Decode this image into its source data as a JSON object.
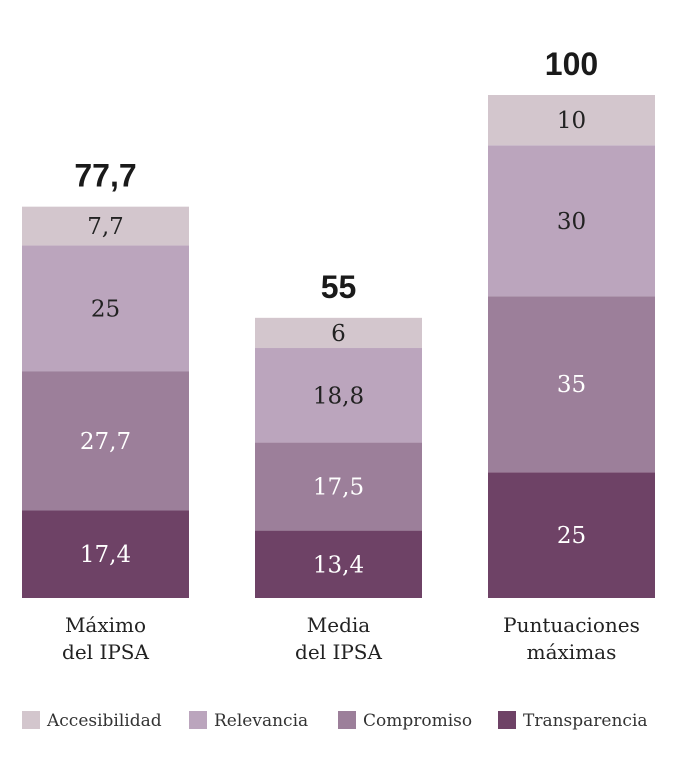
{
  "chart_data": {
    "type": "bar",
    "stacked": true,
    "categories": [
      [
        "Máximo",
        "del IPSA"
      ],
      [
        "Media",
        "del IPSA"
      ],
      [
        "Puntuaciones",
        "máximas"
      ]
    ],
    "totals": [
      "77,7",
      "55",
      "100"
    ],
    "series": [
      {
        "name": "Transparencia",
        "color": "#6e4266",
        "text_color": "#ffffff",
        "values": [
          17.4,
          13.4,
          25
        ],
        "labels": [
          "17,4",
          "13,4",
          "25"
        ]
      },
      {
        "name": "Compromiso",
        "color": "#9c7f9a",
        "text_color": "#ffffff",
        "values": [
          27.7,
          17.5,
          35
        ],
        "labels": [
          "27,7",
          "17,5",
          "35"
        ]
      },
      {
        "name": "Relevancia",
        "color": "#bba5bd",
        "text_color": "#222222",
        "values": [
          25,
          18.8,
          30
        ],
        "labels": [
          "25",
          "18,8",
          "30"
        ]
      },
      {
        "name": "Accesibilidad",
        "color": "#d3c6cd",
        "text_color": "#222222",
        "values": [
          7.7,
          6,
          10
        ],
        "labels": [
          "7,7",
          "6",
          "10"
        ]
      }
    ],
    "ylim": [
      0,
      100
    ],
    "legend": "bottom"
  }
}
